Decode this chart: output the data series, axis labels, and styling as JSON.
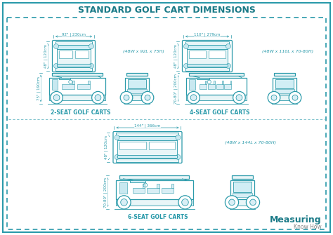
{
  "title": "STANDARD GOLF CART DIMENSIONS",
  "title_color": "#1a7a87",
  "bg_color": "#ffffff",
  "teal": "#2a9aaa",
  "border_color": "#2a9aaa",
  "measuring_text": "Measuring",
  "knowhow_text": "Know How",
  "label_2seat": "2-SEAT GOLF CARTS",
  "label_4seat": "4-SEAT GOLF CARTS",
  "label_6seat": "6-SEAT GOLF CARTS",
  "dims_2seat": "(48W x 92L x 75H)",
  "dims_4seat": "(48W x 110L x 70-80H)",
  "dims_6seat": "(48W x 144L x 70-80H)",
  "meas_2seat_len": "92\" | 230cm",
  "meas_2seat_wid": "48\" | 120cm",
  "meas_2seat_h": "75\" | 190cm",
  "meas_4seat_len": "110\" | 279cm",
  "meas_4seat_wid": "48\" | 120cm",
  "meas_4seat_h": "70-80\" | 200cm",
  "meas_6seat_len": "144\" | 366cm",
  "meas_6seat_wid": "48\" | 120cm",
  "meas_6seat_h": "70-80\" | 200cm"
}
